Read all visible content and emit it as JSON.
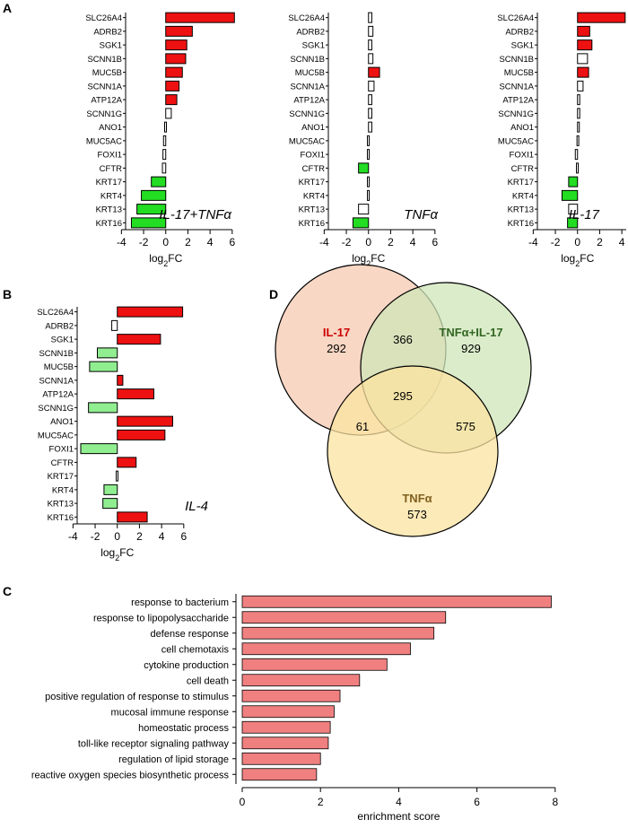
{
  "panel_labels": {
    "a": "A",
    "b": "B",
    "c": "C",
    "d": "D"
  },
  "colors": {
    "up": "#ee1111",
    "down_a": "#22dd22",
    "down_b": "#90ee90",
    "neutral": "#ffffff",
    "enrichment_bar": "#f08080",
    "venn_il17": "#f6c9b0",
    "venn_combo": "#cfe6b8",
    "venn_tnf": "#fbe3a0",
    "il17_title": "#cc0000",
    "combo_title": "#336622",
    "tnf_title": "#806020"
  },
  "chart_data": [
    {
      "id": "A1",
      "type": "bar",
      "orientation": "horizontal",
      "condition": "IL-17+TNFα",
      "xlabel_base": "log",
      "xlabel_sub": "2",
      "xlabel_rest": "FC",
      "xlim": [
        -5,
        6.5
      ],
      "ticks": [
        -4,
        -2,
        0,
        2,
        4,
        6
      ],
      "tick_labels": [
        "-4",
        "-2",
        "0",
        "2",
        "4",
        "6"
      ],
      "categories": [
        "SLC26A4",
        "ADRB2",
        "SGK1",
        "SCNN1B",
        "MUC5B",
        "SCNN1A",
        "ATP12A",
        "SCNN1G",
        "ANO1",
        "MUC5AC",
        "FOXI1",
        "CFTR",
        "KRT17",
        "KRT4",
        "KRT13",
        "KRT16"
      ],
      "values": [
        6.2,
        2.4,
        1.9,
        1.8,
        1.5,
        1.2,
        1.0,
        0.5,
        -0.1,
        -0.2,
        -0.25,
        -0.3,
        -1.3,
        -2.2,
        -2.6,
        -3.1
      ],
      "status": [
        "up",
        "up",
        "up",
        "up",
        "up",
        "up",
        "up",
        "ns",
        "ns",
        "ns",
        "ns",
        "ns",
        "down",
        "down",
        "down",
        "down"
      ]
    },
    {
      "id": "A2",
      "type": "bar",
      "orientation": "horizontal",
      "condition": "TNFα",
      "xlabel_base": "log",
      "xlabel_sub": "2",
      "xlabel_rest": "FC",
      "xlim": [
        -5,
        6.5
      ],
      "ticks": [
        -4,
        -2,
        0,
        2,
        4,
        6
      ],
      "tick_labels": [
        "-4",
        "-2",
        "0",
        "2",
        "4",
        "6"
      ],
      "categories": [
        "SLC26A4",
        "ADRB2",
        "SGK1",
        "SCNN1B",
        "MUC5B",
        "SCNN1A",
        "ATP12A",
        "SCNN1G",
        "ANO1",
        "MUC5AC",
        "FOXI1",
        "CFTR",
        "KRT17",
        "KRT4",
        "KRT13",
        "KRT16"
      ],
      "values": [
        0.3,
        0.4,
        0.3,
        0.4,
        1.0,
        0.5,
        0.3,
        0.3,
        0.3,
        -0.1,
        -0.1,
        -0.9,
        -0.1,
        -0.1,
        -0.9,
        -1.4
      ],
      "status": [
        "ns",
        "ns",
        "ns",
        "ns",
        "up",
        "ns",
        "ns",
        "ns",
        "ns",
        "ns",
        "ns",
        "down",
        "ns",
        "ns",
        "ns",
        "down"
      ]
    },
    {
      "id": "A3",
      "type": "bar",
      "orientation": "horizontal",
      "condition": "IL-17",
      "xlabel_base": "log",
      "xlabel_sub": "2",
      "xlabel_rest": "FC",
      "xlim": [
        -5,
        6.5
      ],
      "ticks": [
        -4,
        -2,
        0,
        2,
        4,
        6
      ],
      "tick_labels": [
        "-4",
        "-2",
        "0",
        "2",
        "4",
        "6"
      ],
      "categories": [
        "SLC26A4",
        "ADRB2",
        "SGK1",
        "SCNN1B",
        "MUC5B",
        "SCNN1A",
        "ATP12A",
        "SCNN1G",
        "ANO1",
        "MUC5AC",
        "FOXI1",
        "CFTR",
        "KRT17",
        "KRT4",
        "KRT13",
        "KRT16"
      ],
      "values": [
        4.3,
        1.1,
        1.3,
        0.9,
        1.0,
        0.5,
        0.2,
        0.2,
        0.0,
        -0.05,
        -0.2,
        -0.1,
        -0.8,
        -1.4,
        -0.8,
        -0.9
      ],
      "status": [
        "up",
        "up",
        "up",
        "ns",
        "up",
        "ns",
        "ns",
        "ns",
        "ns",
        "ns",
        "ns",
        "ns",
        "down",
        "down",
        "ns",
        "down"
      ]
    },
    {
      "id": "B",
      "type": "bar",
      "orientation": "horizontal",
      "condition": "IL-4",
      "xlabel_base": "log",
      "xlabel_sub": "2",
      "xlabel_rest": "FC",
      "xlim": [
        -5,
        6.5
      ],
      "ticks": [
        -4,
        -2,
        0,
        2,
        4,
        6
      ],
      "tick_labels": [
        "-4",
        "-2",
        "0",
        "2",
        "4",
        "6"
      ],
      "categories": [
        "SLC26A4",
        "ADRB2",
        "SGK1",
        "SCNN1B",
        "MUC5B",
        "SCNN1A",
        "ATP12A",
        "SCNN1G",
        "ANO1",
        "MUC5AC",
        "FOXI1",
        "CFTR",
        "KRT17",
        "KRT4",
        "KRT13",
        "KRT16"
      ],
      "values": [
        5.9,
        -0.5,
        3.9,
        -1.8,
        -2.5,
        0.5,
        3.3,
        -2.6,
        5.0,
        4.3,
        -3.3,
        1.7,
        -0.1,
        -1.2,
        -1.3,
        2.7
      ],
      "status": [
        "up",
        "ns",
        "up",
        "down",
        "down",
        "up",
        "up",
        "down",
        "up",
        "up",
        "down",
        "up",
        "ns",
        "down",
        "down",
        "up"
      ]
    },
    {
      "id": "C",
      "type": "bar",
      "orientation": "horizontal",
      "xlabel": "enrichment score",
      "xlim": [
        0,
        8.6
      ],
      "ticks": [
        0,
        2,
        4,
        6,
        8
      ],
      "tick_labels": [
        "0",
        "2",
        "4",
        "6",
        "8"
      ],
      "categories": [
        "response to bacterium",
        "response to lipopolysaccharide",
        "defense response",
        "cell chemotaxis",
        "cytokine production",
        "cell death",
        "positive regulation of response to stimulus",
        "mucosal immune response",
        "homeostatic process",
        "toll-like receptor signaling pathway",
        "regulation of lipid storage",
        "reactive oxygen species biosynthetic process"
      ],
      "values": [
        7.9,
        5.2,
        4.9,
        4.3,
        3.7,
        3.0,
        2.5,
        2.35,
        2.25,
        2.2,
        2.0,
        1.9
      ]
    }
  ],
  "venn": {
    "il17": {
      "name": "IL-17",
      "count": "292"
    },
    "combo": {
      "name": "TNFα+IL-17",
      "count": "929"
    },
    "tnf": {
      "name": "TNFα",
      "count": "573"
    },
    "il17_combo": "366",
    "all_three": "295",
    "il17_tnf": "61",
    "combo_tnf": "575"
  }
}
